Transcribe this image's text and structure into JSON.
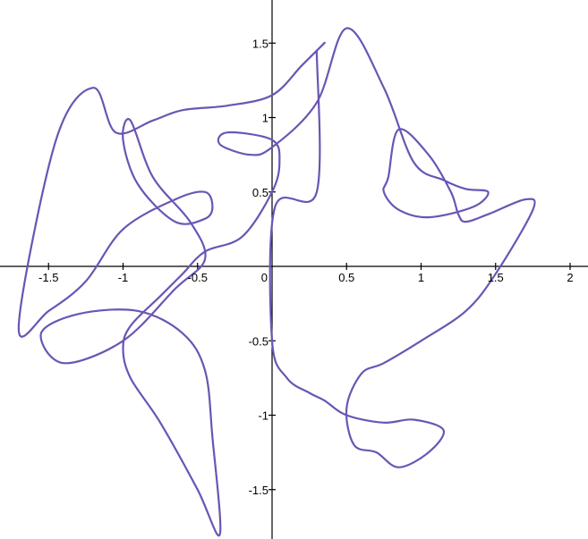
{
  "chart_data": {
    "type": "line",
    "title": "",
    "xlabel": "",
    "ylabel": "",
    "xlim": [
      -1.8,
      2.1
    ],
    "ylim": [
      -1.83,
      1.77
    ],
    "grid": false,
    "legend": "none",
    "x_ticks": [
      -1.5,
      -1,
      -0.5,
      0.5,
      1,
      1.5,
      2
    ],
    "x_tick_labels": [
      "-1.5",
      "-1",
      "-0.5",
      "0.5",
      "1",
      "1.5",
      "2"
    ],
    "y_ticks": [
      -1.5,
      -1,
      -0.5,
      0.5,
      1,
      1.5
    ],
    "y_tick_labels": [
      "-1.5",
      "-1",
      "-0.5",
      "0.5",
      "1",
      "1.5"
    ],
    "origin_label": "0",
    "series": [
      {
        "color": "#6a55b5",
        "curve": "parametric",
        "x": [
          0.3,
          0.35,
          0.2,
          0.0,
          -0.3,
          -0.6,
          -0.8,
          -1.05,
          -1.2,
          -1.45,
          -1.7,
          -1.5,
          -1.25,
          -1.0,
          -0.65,
          -0.45,
          -0.4,
          -0.45,
          -0.65,
          -0.9,
          -1.0,
          -0.95,
          -0.8,
          -0.55,
          -0.45,
          -0.65,
          -1.0,
          -1.4,
          -1.55,
          -1.3,
          -0.9,
          -0.6,
          -0.45,
          -0.4,
          -0.35,
          -0.5,
          -0.75,
          -0.95,
          -1.0,
          -0.95,
          -0.75,
          -0.6,
          -0.45,
          -0.2,
          0.0,
          0.05,
          0.0,
          -0.3,
          -0.35,
          -0.15,
          0.0,
          0.3,
          0.5,
          0.75,
          0.95,
          1.15,
          1.3,
          1.45,
          1.35,
          1.05,
          0.85,
          0.75,
          0.78,
          0.85,
          1.05,
          1.2,
          1.25,
          1.3,
          1.45,
          1.7,
          1.75,
          1.5,
          1.3,
          1.0,
          0.75,
          0.6,
          0.5,
          0.55,
          0.7,
          0.85,
          1.05,
          1.15,
          0.95,
          0.75,
          0.5,
          0.35,
          0.25,
          0.1,
          0.0,
          0.02,
          0.3,
          0.3
        ],
        "y": [
          1.45,
          1.5,
          1.35,
          1.15,
          1.08,
          1.05,
          0.98,
          0.9,
          1.2,
          0.85,
          -0.4,
          -0.3,
          -0.1,
          0.25,
          0.45,
          0.5,
          0.4,
          0.32,
          0.3,
          0.55,
          0.85,
          0.98,
          0.6,
          0.3,
          0.05,
          -0.15,
          -0.5,
          -0.65,
          -0.45,
          -0.32,
          -0.3,
          -0.45,
          -0.7,
          -1.15,
          -1.8,
          -1.5,
          -1.05,
          -0.75,
          -0.55,
          -0.4,
          -0.2,
          -0.05,
          0.1,
          0.2,
          0.5,
          0.7,
          0.85,
          0.9,
          0.82,
          0.75,
          0.8,
          1.1,
          1.6,
          1.2,
          0.7,
          0.58,
          0.52,
          0.5,
          0.4,
          0.33,
          0.38,
          0.5,
          0.6,
          0.92,
          0.75,
          0.5,
          0.35,
          0.3,
          0.35,
          0.45,
          0.38,
          -0.05,
          -0.3,
          -0.5,
          -0.65,
          -0.72,
          -0.95,
          -1.2,
          -1.25,
          -1.35,
          -1.25,
          -1.1,
          -1.03,
          -1.05,
          -1.0,
          -0.9,
          -0.85,
          -0.75,
          -0.5,
          0.4,
          0.5,
          1.45
        ]
      }
    ]
  }
}
